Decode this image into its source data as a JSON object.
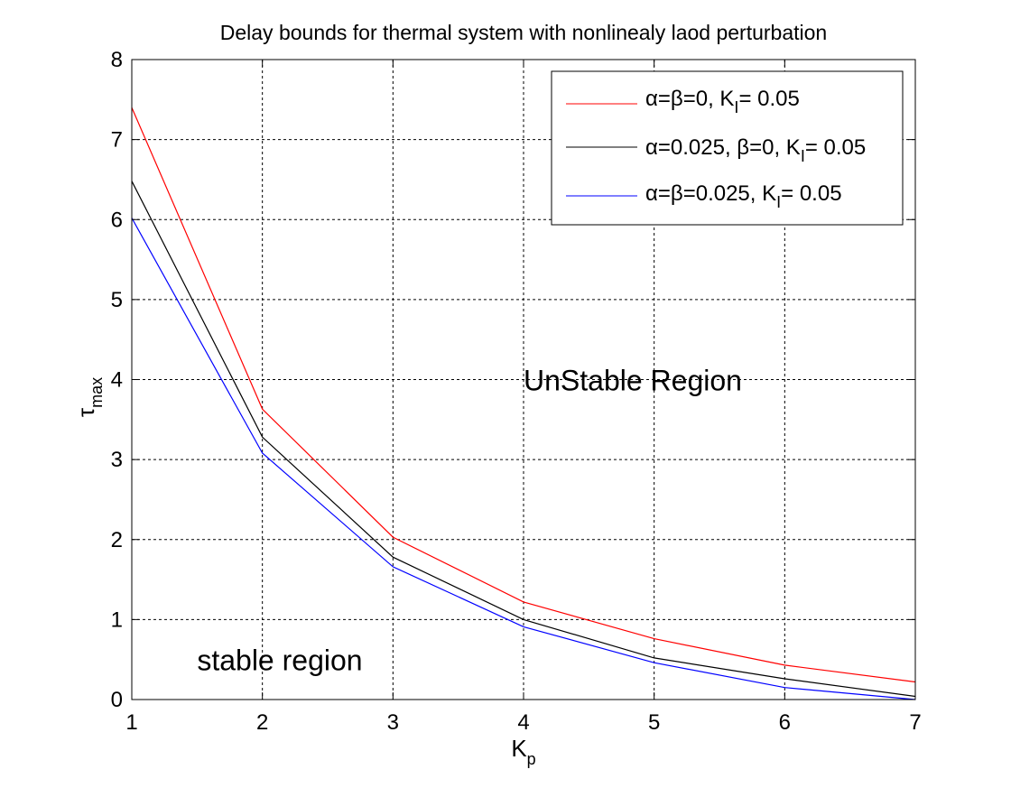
{
  "chart_data": {
    "type": "line",
    "title": "Delay bounds for thermal system with nonlinealy laod perturbation",
    "xlabel": {
      "main": "K",
      "sub": "p"
    },
    "ylabel": {
      "main": "τ",
      "sub": "max"
    },
    "xlim": [
      1,
      7
    ],
    "ylim": [
      0,
      8
    ],
    "xticks": [
      1,
      2,
      3,
      4,
      5,
      6,
      7
    ],
    "yticks": [
      0,
      1,
      2,
      3,
      4,
      5,
      6,
      7,
      8
    ],
    "grid": true,
    "legend_position": "top-right",
    "x": [
      1,
      2,
      3,
      4,
      5,
      6,
      7
    ],
    "series": [
      {
        "color": "#ff0000",
        "values": [
          7.4,
          3.63,
          2.03,
          1.22,
          0.76,
          0.43,
          0.22
        ],
        "legend": {
          "a": "α",
          "eq1": "=",
          "b": "β",
          "mid": "=0, K",
          "sub": "I",
          "end": "= 0.05"
        }
      },
      {
        "color": "#000000",
        "values": [
          6.48,
          3.28,
          1.78,
          1.0,
          0.52,
          0.26,
          0.04
        ],
        "legend": {
          "a": "α",
          "eq1": "=0.025, ",
          "b": "β",
          "mid": "=0, K",
          "sub": "I",
          "end": "= 0.05"
        }
      },
      {
        "color": "#0000ff",
        "values": [
          6.02,
          3.08,
          1.66,
          0.91,
          0.46,
          0.15,
          0.0
        ],
        "legend": {
          "a": "α",
          "eq1": "=",
          "b": "β",
          "mid": "=0.025, K",
          "sub": "I",
          "end": "= 0.05"
        }
      }
    ],
    "annotations": [
      {
        "text": "UnStable Region",
        "x": 4.0,
        "y": 4.0,
        "color": "#0000ff"
      },
      {
        "text": "stable region",
        "x": 1.5,
        "y": 0.5,
        "color": "#ff0000"
      }
    ]
  }
}
